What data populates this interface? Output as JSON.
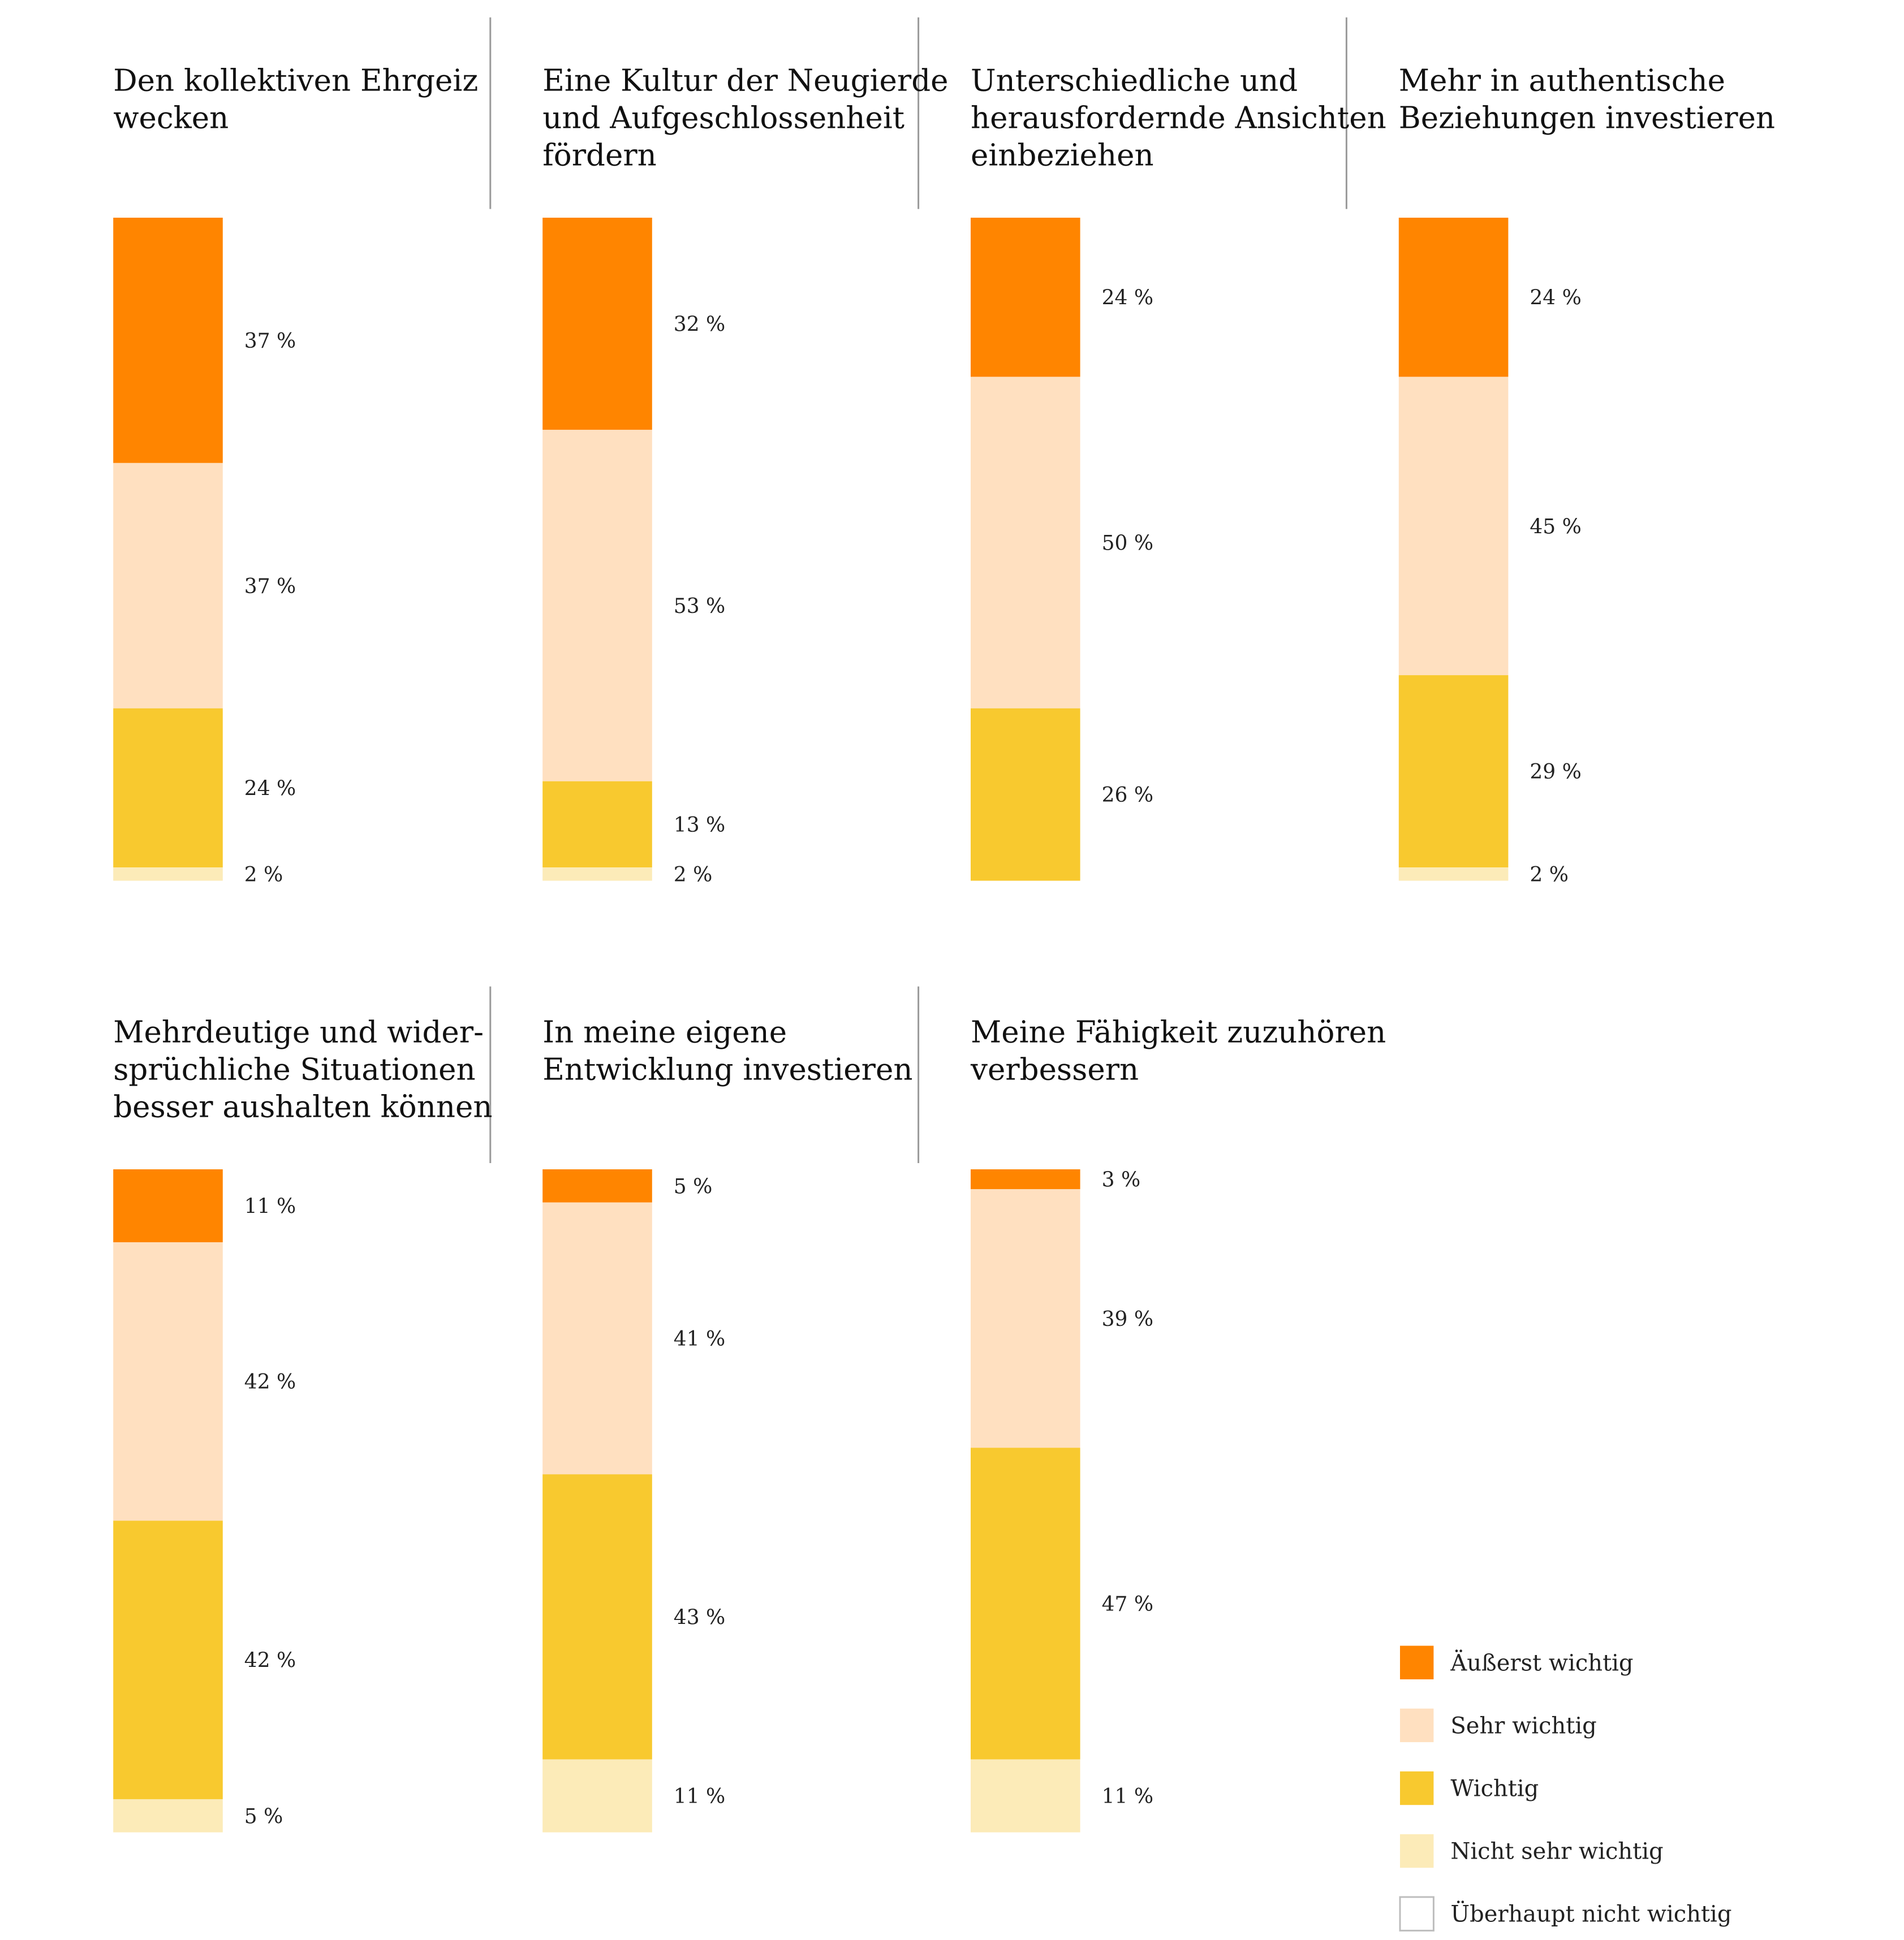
{
  "legend": [
    {
      "label": "Äußerst wichtig",
      "color": "#FF8500"
    },
    {
      "label": "Sehr wichtig",
      "color": "#FFE0C0"
    },
    {
      "label": "Wichtig",
      "color": "#F8C92F"
    },
    {
      "label": "Nicht sehr wichtig",
      "color": "#FCEBB8"
    },
    {
      "label": "Überhaupt nicht wichtig",
      "color": "#FFFFFF"
    }
  ],
  "chart_data": [
    {
      "type": "bar",
      "title": [
        "Den kollektiven Ehrgeiz",
        "wecken"
      ],
      "categories": [
        "Äußerst wichtig",
        "Sehr wichtig",
        "Wichtig",
        "Nicht sehr wichtig",
        "Überhaupt nicht wichtig"
      ],
      "values": [
        37,
        37,
        24,
        2,
        0
      ],
      "labels": [
        "37 %",
        "37 %",
        "24 %",
        "2 %",
        ""
      ]
    },
    {
      "type": "bar",
      "title": [
        "Eine Kultur der Neugierde",
        "und Aufgeschlossenheit",
        "fördern"
      ],
      "categories": [
        "Äußerst wichtig",
        "Sehr wichtig",
        "Wichtig",
        "Nicht sehr wichtig",
        "Überhaupt nicht wichtig"
      ],
      "values": [
        32,
        53,
        13,
        2,
        0
      ],
      "labels": [
        "32 %",
        "53 %",
        "13 %",
        "2 %",
        ""
      ]
    },
    {
      "type": "bar",
      "title": [
        "Unterschiedliche und",
        "herausfordernde Ansichten",
        "einbeziehen"
      ],
      "categories": [
        "Äußerst wichtig",
        "Sehr wichtig",
        "Wichtig",
        "Nicht sehr wichtig",
        "Überhaupt nicht wichtig"
      ],
      "values": [
        24,
        50,
        26,
        0,
        0
      ],
      "labels": [
        "24 %",
        "50 %",
        "26 %",
        "",
        ""
      ]
    },
    {
      "type": "bar",
      "title": [
        "Mehr in authentische",
        "Beziehungen investieren"
      ],
      "categories": [
        "Äußerst wichtig",
        "Sehr wichtig",
        "Wichtig",
        "Nicht sehr wichtig",
        "Überhaupt nicht wichtig"
      ],
      "values": [
        24,
        45,
        29,
        2,
        0
      ],
      "labels": [
        "24 %",
        "45 %",
        "29 %",
        "2 %",
        ""
      ]
    },
    {
      "type": "bar",
      "title": [
        "Mehrdeutige und wider-",
        "sprüchliche Situationen",
        "besser aushalten können"
      ],
      "categories": [
        "Äußerst wichtig",
        "Sehr wichtig",
        "Wichtig",
        "Nicht sehr wichtig",
        "Überhaupt nicht wichtig"
      ],
      "values": [
        11,
        42,
        42,
        5,
        0
      ],
      "labels": [
        "11 %",
        "42 %",
        "42 %",
        "5 %",
        ""
      ]
    },
    {
      "type": "bar",
      "title": [
        "In meine eigene",
        "Entwicklung investieren"
      ],
      "categories": [
        "Äußerst wichtig",
        "Sehr wichtig",
        "Wichtig",
        "Nicht sehr wichtig",
        "Überhaupt nicht wichtig"
      ],
      "values": [
        5,
        41,
        43,
        11,
        0
      ],
      "labels": [
        "5 %",
        "41 %",
        "43 %",
        "11 %",
        ""
      ]
    },
    {
      "type": "bar",
      "title": [
        "Meine Fähigkeit zuzuhören",
        "verbessern"
      ],
      "categories": [
        "Äußerst wichtig",
        "Sehr wichtig",
        "Wichtig",
        "Nicht sehr wichtig",
        "Überhaupt nicht wichtig"
      ],
      "values": [
        3,
        39,
        47,
        11,
        0
      ],
      "labels": [
        "3 %",
        "39 %",
        "47 %",
        "11 %",
        ""
      ]
    }
  ]
}
